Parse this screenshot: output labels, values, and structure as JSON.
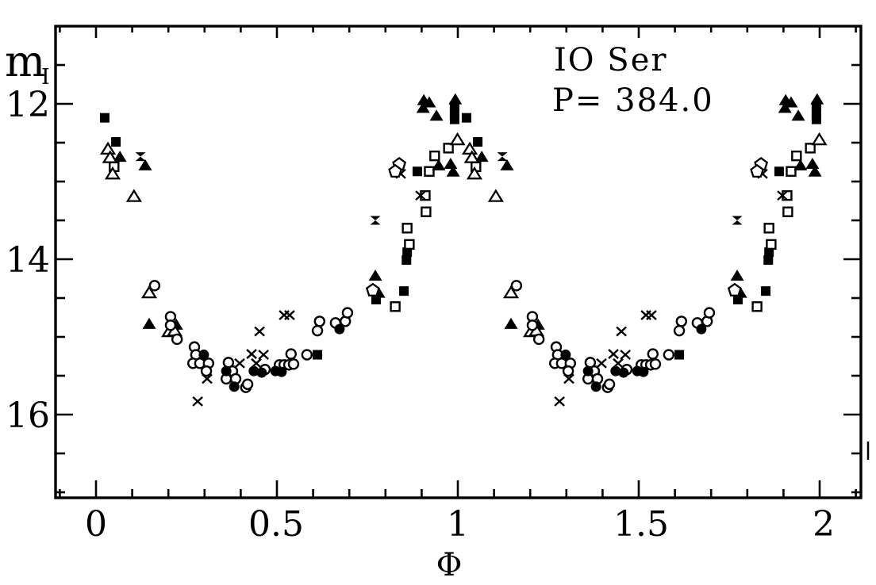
{
  "figure": {
    "ink_color": "#000000",
    "paper_color": "#ffffff"
  },
  "chart_data": {
    "type": "scatter",
    "title": "IO Ser",
    "subtitle": "P= 384.0",
    "star_name": "IO Ser",
    "period_label": "P= 384.0",
    "description": "Phase-folded I-band light curve, data duplicated over two phase cycles",
    "phase_copies": [
      0,
      1
    ],
    "x_axis": {
      "label": "Φ",
      "min": -0.11,
      "max": 2.11,
      "major_ticks": [
        0,
        0.5,
        1,
        1.5,
        2
      ],
      "tick_labels": [
        "0",
        "0.5",
        "1",
        "1.5",
        "2"
      ],
      "minor_step": 0.1
    },
    "y_axis": {
      "label_main": "m",
      "label_sub": "I",
      "min": 11.0,
      "max": 17.07,
      "inverted": true,
      "labeled_ticks": [
        12,
        14,
        16
      ],
      "tick_labels": [
        "12",
        "14",
        "16"
      ],
      "minor_step": 0.5
    },
    "series": [
      {
        "name": "filled-square",
        "marker": "filled-square",
        "points": [
          [
            0.024,
            12.18
          ],
          [
            0.055,
            12.49
          ],
          [
            0.612,
            15.23
          ],
          [
            0.774,
            14.52
          ],
          [
            0.851,
            14.41
          ],
          [
            0.86,
            13.91
          ],
          [
            0.858,
            14.01
          ],
          [
            0.991,
            12.03
          ],
          [
            0.991,
            12.12
          ],
          [
            0.991,
            12.2
          ],
          [
            0.888,
            12.87
          ]
        ]
      },
      {
        "name": "open-square",
        "marker": "open-square",
        "points": [
          [
            0.05,
            12.81
          ],
          [
            0.827,
            14.61
          ],
          [
            0.86,
            13.6
          ],
          [
            0.866,
            13.81
          ],
          [
            0.91,
            13.18
          ],
          [
            0.912,
            13.39
          ],
          [
            0.974,
            12.57
          ],
          [
            0.936,
            12.67
          ],
          [
            0.921,
            12.87
          ]
        ]
      },
      {
        "name": "filled-triangle",
        "marker": "filled-triangle",
        "points": [
          [
            0.066,
            12.68
          ],
          [
            0.136,
            12.79
          ],
          [
            0.147,
            14.83
          ],
          [
            0.222,
            14.84
          ],
          [
            0.781,
            14.43
          ],
          [
            0.772,
            14.21
          ],
          [
            0.906,
            11.95
          ],
          [
            0.921,
            11.98
          ],
          [
            0.904,
            12.05
          ],
          [
            0.941,
            12.15
          ],
          [
            0.993,
            11.94
          ],
          [
            0.947,
            12.79
          ],
          [
            0.98,
            12.77
          ],
          [
            0.987,
            12.87
          ]
        ]
      },
      {
        "name": "open-triangle",
        "marker": "open-triangle",
        "points": [
          [
            0.033,
            12.58
          ],
          [
            0.039,
            12.69
          ],
          [
            0.046,
            12.9
          ],
          [
            0.105,
            13.19
          ],
          [
            0.147,
            14.43
          ],
          [
            0.202,
            14.93
          ],
          [
            0.217,
            14.92
          ],
          [
            0.999,
            12.46
          ]
        ]
      },
      {
        "name": "open-circle",
        "marker": "open-circle",
        "points": [
          [
            0.162,
            14.34
          ],
          [
            0.206,
            14.74
          ],
          [
            0.206,
            14.85
          ],
          [
            0.224,
            15.03
          ],
          [
            0.272,
            15.13
          ],
          [
            0.276,
            15.23
          ],
          [
            0.268,
            15.34
          ],
          [
            0.287,
            15.34
          ],
          [
            0.311,
            15.34
          ],
          [
            0.305,
            15.44
          ],
          [
            0.366,
            15.33
          ],
          [
            0.377,
            15.44
          ],
          [
            0.36,
            15.54
          ],
          [
            0.386,
            15.54
          ],
          [
            0.414,
            15.65
          ],
          [
            0.467,
            15.42
          ],
          [
            0.419,
            15.61
          ],
          [
            0.507,
            15.36
          ],
          [
            0.52,
            15.36
          ],
          [
            0.533,
            15.36
          ],
          [
            0.546,
            15.35
          ],
          [
            0.539,
            15.22
          ],
          [
            0.583,
            15.23
          ],
          [
            0.618,
            14.8
          ],
          [
            0.612,
            14.92
          ],
          [
            0.662,
            14.82
          ],
          [
            0.689,
            14.8
          ],
          [
            0.695,
            14.69
          ]
        ]
      },
      {
        "name": "filled-circle",
        "marker": "filled-circle",
        "points": [
          [
            0.298,
            15.23
          ],
          [
            0.36,
            15.44
          ],
          [
            0.382,
            15.64
          ],
          [
            0.436,
            15.44
          ],
          [
            0.458,
            15.46
          ],
          [
            0.496,
            15.44
          ],
          [
            0.513,
            15.45
          ],
          [
            0.673,
            14.9
          ]
        ]
      },
      {
        "name": "cross",
        "marker": "cross",
        "points": [
          [
            0.307,
            15.54
          ],
          [
            0.281,
            15.83
          ],
          [
            0.397,
            15.34
          ],
          [
            0.43,
            15.22
          ],
          [
            0.463,
            15.23
          ],
          [
            0.443,
            15.34
          ],
          [
            0.452,
            14.93
          ],
          [
            0.52,
            14.72
          ],
          [
            0.535,
            14.72
          ],
          [
            0.897,
            13.18
          ],
          [
            0.842,
            12.9
          ]
        ]
      },
      {
        "name": "open-pentagon",
        "marker": "open-pentagon",
        "points": [
          [
            0.765,
            14.4
          ],
          [
            0.838,
            12.78
          ],
          [
            0.827,
            12.87
          ]
        ]
      },
      {
        "name": "bowtie",
        "marker": "bowtie",
        "points": [
          [
            0.123,
            12.68
          ],
          [
            0.772,
            13.5
          ]
        ]
      }
    ]
  }
}
